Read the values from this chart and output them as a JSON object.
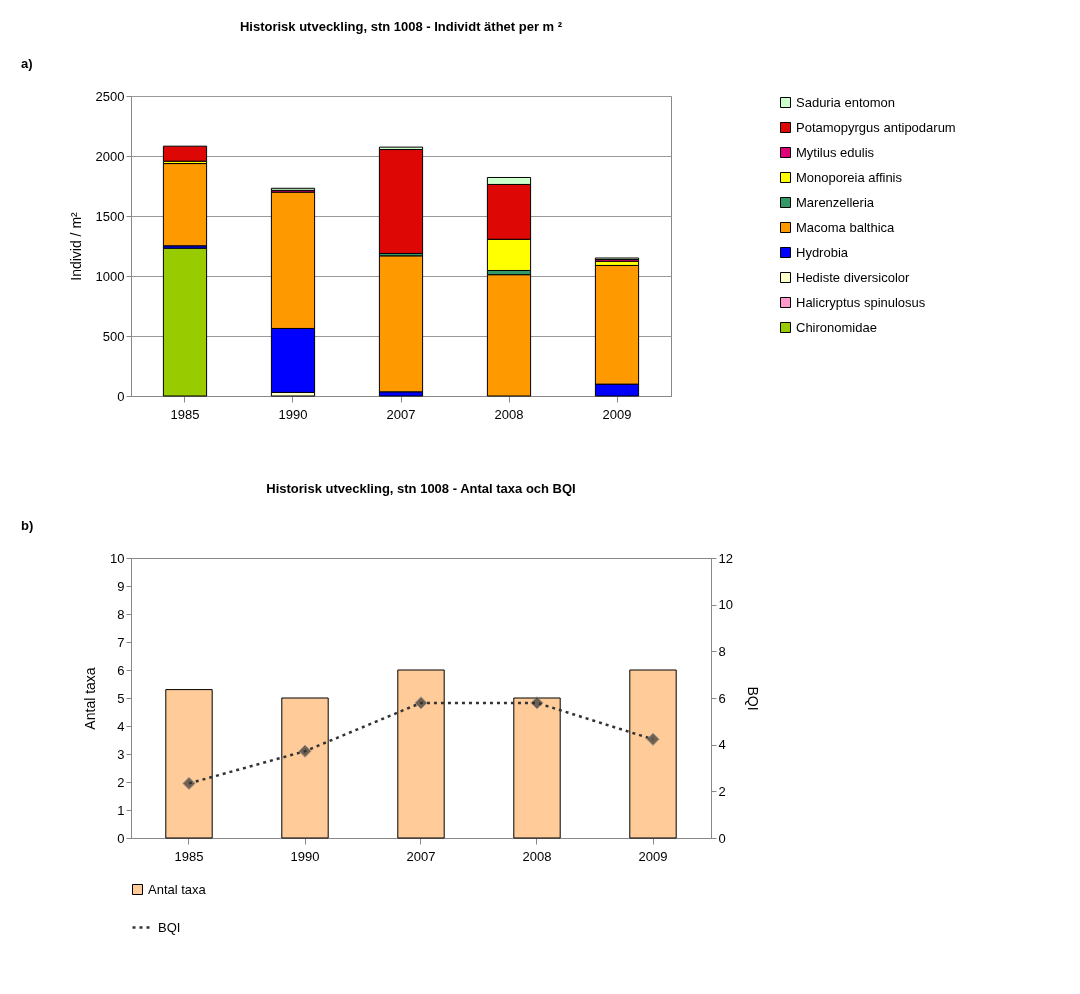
{
  "chart_data": [
    {
      "type": "bar",
      "title": "Historisk utveckling,    stn 1008 - Individt äthet per m ²",
      "ylabel": "Individ / m²",
      "annotations": [
        "a)"
      ],
      "categories": [
        "1985",
        "1990",
        "2007",
        "2008",
        "2009"
      ],
      "stacked": true,
      "series": [
        {
          "name": "Chironomidae",
          "color": "#99cc00",
          "values": [
            1232,
            0,
            0,
            0,
            0
          ]
        },
        {
          "name": "Halicryptus spinulosus",
          "color": "#ff99cc",
          "values": [
            0,
            0,
            0,
            0,
            0
          ]
        },
        {
          "name": "Hediste diversicolor",
          "color": "#ffffcc",
          "values": [
            0,
            30,
            0,
            0,
            0
          ]
        },
        {
          "name": "Hydrobia",
          "color": "#0000ff",
          "values": [
            20,
            533,
            35,
            0,
            99
          ]
        },
        {
          "name": "Macoma balthica",
          "color": "#ff9900",
          "values": [
            685,
            1136,
            1133,
            1011,
            989
          ]
        },
        {
          "name": "Marenzelleria",
          "color": "#339966",
          "values": [
            0,
            0,
            20,
            35,
            0
          ]
        },
        {
          "name": "Monoporeia affinis",
          "color": "#ffff00",
          "values": [
            20,
            0,
            0,
            260,
            35
          ]
        },
        {
          "name": "Mytilus edulis",
          "color": "#e0007a",
          "values": [
            0,
            15,
            0,
            0,
            15
          ]
        },
        {
          "name": "Potamopyrgus antipodarum",
          "color": "#dd0806",
          "values": [
            125,
            0,
            866,
            457,
            0
          ]
        },
        {
          "name": "Saduria entomon",
          "color": "#ccffcc",
          "values": [
            0,
            17,
            20,
            58,
            12
          ]
        }
      ],
      "ylim": [
        0,
        2500
      ],
      "yticks": [
        0,
        500,
        1000,
        1500,
        2000,
        2500
      ],
      "grid": "y",
      "legend": "right"
    },
    {
      "type": "bar",
      "title": "Historisk utveckling,    stn 1008 - Antal taxa och BQI",
      "ylabel": "Antal taxa",
      "y2label": "BQI",
      "annotations": [
        "b)"
      ],
      "categories": [
        "1985",
        "1990",
        "2007",
        "2008",
        "2009"
      ],
      "series": [
        {
          "name": "Antal taxa",
          "color": "#ffcc99",
          "values": [
            5.3,
            5,
            6,
            5,
            6
          ]
        },
        {
          "name": "BQI",
          "type": "line",
          "axis": "y2",
          "color": "#333333",
          "values": [
            2.34,
            3.72,
            5.79,
            5.79,
            4.23
          ]
        }
      ],
      "ylim": [
        0,
        10
      ],
      "yticks": [
        0,
        1,
        2,
        3,
        4,
        5,
        6,
        7,
        8,
        9,
        10
      ],
      "y2lim": [
        0,
        12
      ],
      "y2ticks": [
        0,
        2,
        4,
        6,
        8,
        10,
        12
      ],
      "grid": false,
      "legend": "bottom",
      "marker": "diamond",
      "line_style": "dotted"
    }
  ]
}
